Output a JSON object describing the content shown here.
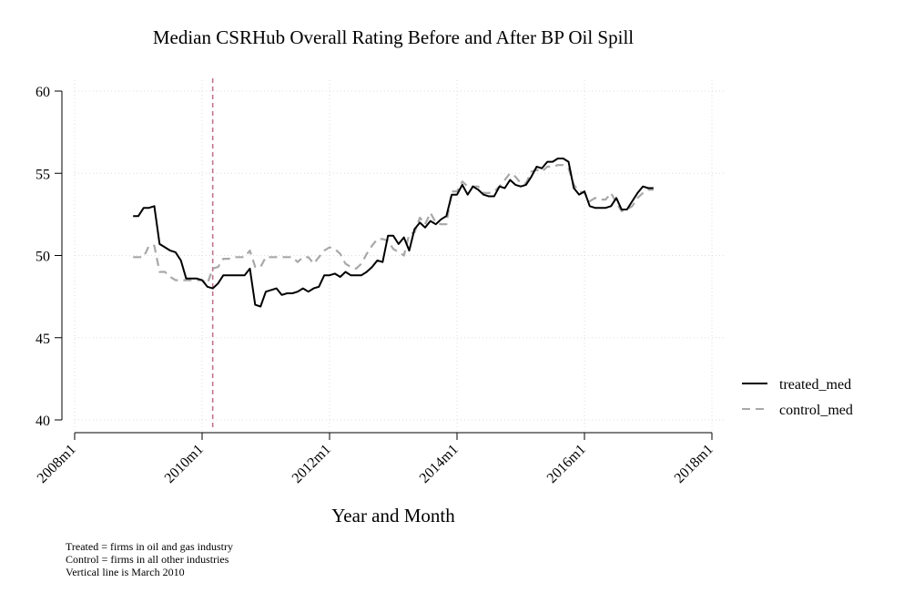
{
  "chart_data": {
    "type": "line",
    "title": "Median CSRHub Overall Rating Before and After BP Oil Spill",
    "xlabel": "Year and Month",
    "ylabel": "",
    "x_ticks": [
      "2008m1",
      "2010m1",
      "2012m1",
      "2014m1",
      "2016m1",
      "2018m1"
    ],
    "y_ticks": [
      40,
      45,
      50,
      55,
      60
    ],
    "xlim": [
      "2008-01",
      "2018-01"
    ],
    "ylim": [
      40,
      60
    ],
    "grid": true,
    "legend_position": "right",
    "vline": {
      "x": "2010-03",
      "color": "#c0758f",
      "style": "dashed"
    },
    "series": [
      {
        "name": "treated_med",
        "color": "#000000",
        "style": "solid",
        "points": [
          [
            "2008-12",
            52.4
          ],
          [
            "2009-01",
            52.4
          ],
          [
            "2009-02",
            52.9
          ],
          [
            "2009-03",
            52.9
          ],
          [
            "2009-04",
            53.0
          ],
          [
            "2009-05",
            50.7
          ],
          [
            "2009-06",
            50.5
          ],
          [
            "2009-07",
            50.3
          ],
          [
            "2009-08",
            50.2
          ],
          [
            "2009-09",
            49.7
          ],
          [
            "2009-10",
            48.6
          ],
          [
            "2009-11",
            48.6
          ],
          [
            "2009-12",
            48.6
          ],
          [
            "2010-01",
            48.5
          ],
          [
            "2010-02",
            48.1
          ],
          [
            "2010-03",
            48.0
          ],
          [
            "2010-04",
            48.3
          ],
          [
            "2010-05",
            48.8
          ],
          [
            "2010-06",
            48.8
          ],
          [
            "2010-07",
            48.8
          ],
          [
            "2010-08",
            48.8
          ],
          [
            "2010-09",
            48.8
          ],
          [
            "2010-10",
            49.2
          ],
          [
            "2010-11",
            47.0
          ],
          [
            "2010-12",
            46.9
          ],
          [
            "2011-01",
            47.8
          ],
          [
            "2011-02",
            47.9
          ],
          [
            "2011-03",
            48.0
          ],
          [
            "2011-04",
            47.6
          ],
          [
            "2011-05",
            47.7
          ],
          [
            "2011-06",
            47.7
          ],
          [
            "2011-07",
            47.8
          ],
          [
            "2011-08",
            48.0
          ],
          [
            "2011-09",
            47.8
          ],
          [
            "2011-10",
            48.0
          ],
          [
            "2011-11",
            48.1
          ],
          [
            "2011-12",
            48.8
          ],
          [
            "2012-01",
            48.8
          ],
          [
            "2012-02",
            48.9
          ],
          [
            "2012-03",
            48.7
          ],
          [
            "2012-04",
            49.0
          ],
          [
            "2012-05",
            48.8
          ],
          [
            "2012-06",
            48.8
          ],
          [
            "2012-07",
            48.8
          ],
          [
            "2012-08",
            49.0
          ],
          [
            "2012-09",
            49.3
          ],
          [
            "2012-10",
            49.7
          ],
          [
            "2012-11",
            49.6
          ],
          [
            "2012-12",
            51.2
          ],
          [
            "2013-01",
            51.2
          ],
          [
            "2013-02",
            50.7
          ],
          [
            "2013-03",
            51.1
          ],
          [
            "2013-04",
            50.3
          ],
          [
            "2013-05",
            51.6
          ],
          [
            "2013-06",
            52.0
          ],
          [
            "2013-07",
            51.7
          ],
          [
            "2013-08",
            52.1
          ],
          [
            "2013-09",
            51.9
          ],
          [
            "2013-10",
            52.2
          ],
          [
            "2013-11",
            52.4
          ],
          [
            "2013-12",
            53.7
          ],
          [
            "2014-01",
            53.7
          ],
          [
            "2014-02",
            54.3
          ],
          [
            "2014-03",
            53.7
          ],
          [
            "2014-04",
            54.2
          ],
          [
            "2014-05",
            54.0
          ],
          [
            "2014-06",
            53.7
          ],
          [
            "2014-07",
            53.6
          ],
          [
            "2014-08",
            53.6
          ],
          [
            "2014-09",
            54.2
          ],
          [
            "2014-10",
            54.1
          ],
          [
            "2014-11",
            54.6
          ],
          [
            "2014-12",
            54.3
          ],
          [
            "2015-01",
            54.2
          ],
          [
            "2015-02",
            54.3
          ],
          [
            "2015-03",
            54.8
          ],
          [
            "2015-04",
            55.4
          ],
          [
            "2015-05",
            55.3
          ],
          [
            "2015-06",
            55.7
          ],
          [
            "2015-07",
            55.7
          ],
          [
            "2015-08",
            55.9
          ],
          [
            "2015-09",
            55.9
          ],
          [
            "2015-10",
            55.7
          ],
          [
            "2015-11",
            54.1
          ],
          [
            "2015-12",
            53.7
          ],
          [
            "2016-01",
            53.9
          ],
          [
            "2016-02",
            53.0
          ],
          [
            "2016-03",
            52.9
          ],
          [
            "2016-04",
            52.9
          ],
          [
            "2016-05",
            52.9
          ],
          [
            "2016-06",
            53.0
          ],
          [
            "2016-07",
            53.5
          ],
          [
            "2016-08",
            52.8
          ],
          [
            "2016-09",
            52.8
          ],
          [
            "2016-10",
            53.3
          ],
          [
            "2016-11",
            53.8
          ],
          [
            "2016-12",
            54.2
          ],
          [
            "2017-01",
            54.1
          ],
          [
            "2017-02",
            54.1
          ]
        ]
      },
      {
        "name": "control_med",
        "color": "#a8a8a8",
        "style": "dashed",
        "points": [
          [
            "2008-12",
            49.9
          ],
          [
            "2009-01",
            49.9
          ],
          [
            "2009-02",
            49.9
          ],
          [
            "2009-03",
            50.6
          ],
          [
            "2009-04",
            50.6
          ],
          [
            "2009-05",
            49.0
          ],
          [
            "2009-06",
            49.0
          ],
          [
            "2009-07",
            48.7
          ],
          [
            "2009-08",
            48.5
          ],
          [
            "2009-09",
            48.5
          ],
          [
            "2009-10",
            48.5
          ],
          [
            "2009-11",
            48.5
          ],
          [
            "2009-12",
            48.5
          ],
          [
            "2010-01",
            48.5
          ],
          [
            "2010-02",
            48.3
          ],
          [
            "2010-03",
            49.2
          ],
          [
            "2010-04",
            49.3
          ],
          [
            "2010-05",
            49.8
          ],
          [
            "2010-06",
            49.8
          ],
          [
            "2010-07",
            49.9
          ],
          [
            "2010-08",
            49.9
          ],
          [
            "2010-09",
            49.9
          ],
          [
            "2010-10",
            50.3
          ],
          [
            "2010-11",
            49.3
          ],
          [
            "2010-12",
            49.3
          ],
          [
            "2011-01",
            49.9
          ],
          [
            "2011-02",
            49.9
          ],
          [
            "2011-03",
            49.9
          ],
          [
            "2011-04",
            49.9
          ],
          [
            "2011-05",
            49.9
          ],
          [
            "2011-06",
            49.9
          ],
          [
            "2011-07",
            49.6
          ],
          [
            "2011-08",
            49.9
          ],
          [
            "2011-09",
            49.9
          ],
          [
            "2011-10",
            49.5
          ],
          [
            "2011-11",
            49.9
          ],
          [
            "2011-12",
            50.3
          ],
          [
            "2012-01",
            50.5
          ],
          [
            "2012-02",
            50.4
          ],
          [
            "2012-03",
            50.1
          ],
          [
            "2012-04",
            49.5
          ],
          [
            "2012-05",
            49.3
          ],
          [
            "2012-06",
            49.2
          ],
          [
            "2012-07",
            49.5
          ],
          [
            "2012-08",
            50.1
          ],
          [
            "2012-09",
            50.6
          ],
          [
            "2012-10",
            51.0
          ],
          [
            "2012-11",
            51.0
          ],
          [
            "2012-12",
            50.9
          ],
          [
            "2013-01",
            50.4
          ],
          [
            "2013-02",
            50.2
          ],
          [
            "2013-03",
            50.0
          ],
          [
            "2013-04",
            51.3
          ],
          [
            "2013-05",
            51.4
          ],
          [
            "2013-06",
            52.3
          ],
          [
            "2013-07",
            51.9
          ],
          [
            "2013-08",
            52.6
          ],
          [
            "2013-09",
            52.0
          ],
          [
            "2013-10",
            51.9
          ],
          [
            "2013-11",
            51.9
          ],
          [
            "2013-12",
            53.9
          ],
          [
            "2014-01",
            53.9
          ],
          [
            "2014-02",
            54.5
          ],
          [
            "2014-03",
            54.2
          ],
          [
            "2014-04",
            54.2
          ],
          [
            "2014-05",
            54.2
          ],
          [
            "2014-06",
            53.8
          ],
          [
            "2014-07",
            53.8
          ],
          [
            "2014-08",
            53.9
          ],
          [
            "2014-09",
            54.2
          ],
          [
            "2014-10",
            54.6
          ],
          [
            "2014-11",
            55.0
          ],
          [
            "2014-12",
            54.8
          ],
          [
            "2015-01",
            54.4
          ],
          [
            "2015-02",
            54.4
          ],
          [
            "2015-03",
            55.1
          ],
          [
            "2015-04",
            55.2
          ],
          [
            "2015-05",
            55.1
          ],
          [
            "2015-06",
            55.4
          ],
          [
            "2015-07",
            55.4
          ],
          [
            "2015-08",
            55.5
          ],
          [
            "2015-09",
            55.5
          ],
          [
            "2015-10",
            55.3
          ],
          [
            "2015-11",
            54.3
          ],
          [
            "2015-12",
            53.9
          ],
          [
            "2016-01",
            53.8
          ],
          [
            "2016-02",
            53.3
          ],
          [
            "2016-03",
            53.5
          ],
          [
            "2016-04",
            53.4
          ],
          [
            "2016-05",
            53.4
          ],
          [
            "2016-06",
            53.8
          ],
          [
            "2016-07",
            53.2
          ],
          [
            "2016-08",
            52.7
          ],
          [
            "2016-09",
            52.8
          ],
          [
            "2016-10",
            53.0
          ],
          [
            "2016-11",
            53.5
          ],
          [
            "2016-12",
            53.8
          ],
          [
            "2017-01",
            54.0
          ],
          [
            "2017-02",
            54.0
          ]
        ]
      }
    ]
  },
  "notes": [
    "Treated = firms in oil and gas industry",
    "Control = firms in all other industries",
    "Vertical line is March 2010"
  ]
}
